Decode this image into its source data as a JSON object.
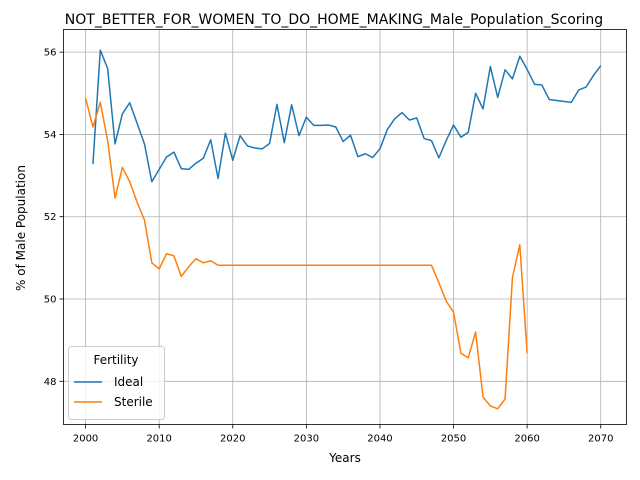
{
  "chart_data": {
    "type": "line",
    "title": "NOT_BETTER_FOR_WOMEN_TO_DO_HOME_MAKING_Male_Population_Scoring",
    "xlabel": "Years",
    "ylabel": "% of Male Population",
    "xlim": [
      1997,
      2073.5
    ],
    "ylim": [
      46.95,
      56.55
    ],
    "xticks": [
      2000,
      2010,
      2020,
      2030,
      2040,
      2050,
      2060,
      2070
    ],
    "yticks": [
      48,
      50,
      52,
      54,
      56
    ],
    "grid": true,
    "legend": {
      "title": "Fertility",
      "placement": "lower-left"
    },
    "series": [
      {
        "name": "Ideal",
        "color": "#1f77b4",
        "points": [
          [
            2001,
            53.28
          ],
          [
            2002,
            56.05
          ],
          [
            2003,
            55.6
          ],
          [
            2004,
            53.77
          ],
          [
            2005,
            54.5
          ],
          [
            2006,
            54.77
          ],
          [
            2007,
            54.27
          ],
          [
            2008,
            53.77
          ],
          [
            2009,
            52.85
          ],
          [
            2010,
            53.15
          ],
          [
            2011,
            53.45
          ],
          [
            2012,
            53.57
          ],
          [
            2013,
            53.17
          ],
          [
            2014,
            53.15
          ],
          [
            2015,
            53.3
          ],
          [
            2016,
            53.42
          ],
          [
            2017,
            53.87
          ],
          [
            2018,
            52.93
          ],
          [
            2019,
            54.03
          ],
          [
            2020,
            53.37
          ],
          [
            2021,
            53.97
          ],
          [
            2022,
            53.72
          ],
          [
            2023,
            53.67
          ],
          [
            2024,
            53.65
          ],
          [
            2025,
            53.78
          ],
          [
            2026,
            54.73
          ],
          [
            2027,
            53.8
          ],
          [
            2028,
            54.72
          ],
          [
            2029,
            53.97
          ],
          [
            2030,
            54.42
          ],
          [
            2031,
            54.22
          ],
          [
            2032,
            54.22
          ],
          [
            2033,
            54.23
          ],
          [
            2034,
            54.18
          ],
          [
            2035,
            53.83
          ],
          [
            2036,
            53.98
          ],
          [
            2037,
            53.46
          ],
          [
            2038,
            53.53
          ],
          [
            2039,
            53.44
          ],
          [
            2040,
            53.65
          ],
          [
            2041,
            54.12
          ],
          [
            2042,
            54.38
          ],
          [
            2043,
            54.53
          ],
          [
            2044,
            54.35
          ],
          [
            2045,
            54.4
          ],
          [
            2046,
            53.9
          ],
          [
            2047,
            53.85
          ],
          [
            2048,
            53.43
          ],
          [
            2049,
            53.85
          ],
          [
            2050,
            54.23
          ],
          [
            2051,
            53.93
          ],
          [
            2052,
            54.05
          ],
          [
            2053,
            55.0
          ],
          [
            2054,
            54.62
          ],
          [
            2055,
            55.65
          ],
          [
            2056,
            54.9
          ],
          [
            2057,
            55.57
          ],
          [
            2058,
            55.35
          ],
          [
            2059,
            55.9
          ],
          [
            2060,
            55.58
          ],
          [
            2061,
            55.22
          ],
          [
            2062,
            55.2
          ],
          [
            2063,
            54.85
          ],
          [
            2066,
            54.78
          ],
          [
            2067,
            55.08
          ],
          [
            2068,
            55.15
          ],
          [
            2069,
            55.43
          ],
          [
            2070,
            55.67
          ]
        ]
      },
      {
        "name": "Sterile",
        "color": "#ff7f0e",
        "points": [
          [
            2000,
            54.88
          ],
          [
            2001,
            54.18
          ],
          [
            2002,
            54.78
          ],
          [
            2003,
            53.85
          ],
          [
            2004,
            52.45
          ],
          [
            2005,
            53.2
          ],
          [
            2006,
            52.85
          ],
          [
            2007,
            52.35
          ],
          [
            2008,
            51.92
          ],
          [
            2009,
            50.88
          ],
          [
            2010,
            50.73
          ],
          [
            2011,
            51.1
          ],
          [
            2012,
            51.05
          ],
          [
            2013,
            50.55
          ],
          [
            2014,
            50.78
          ],
          [
            2015,
            50.98
          ],
          [
            2016,
            50.88
          ],
          [
            2017,
            50.93
          ],
          [
            2018,
            50.82
          ],
          [
            2047,
            50.82
          ],
          [
            2048,
            50.4
          ],
          [
            2049,
            49.95
          ],
          [
            2050,
            49.68
          ],
          [
            2051,
            48.68
          ],
          [
            2052,
            48.57
          ],
          [
            2053,
            49.2
          ],
          [
            2054,
            47.62
          ],
          [
            2055,
            47.4
          ],
          [
            2056,
            47.33
          ],
          [
            2057,
            47.57
          ],
          [
            2058,
            50.52
          ],
          [
            2059,
            51.32
          ],
          [
            2060,
            48.68
          ]
        ]
      }
    ]
  }
}
